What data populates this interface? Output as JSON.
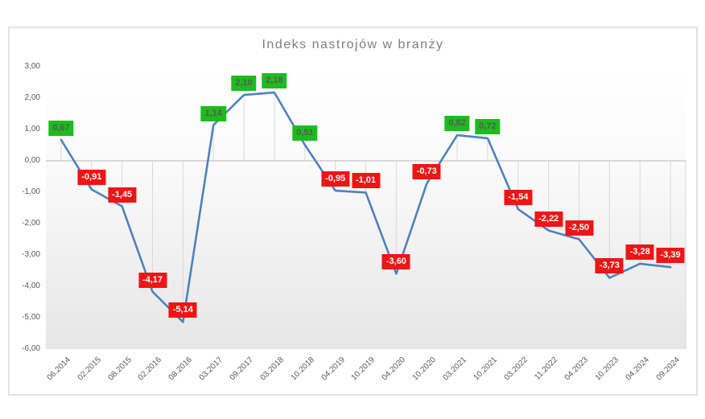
{
  "chart_data": {
    "type": "line",
    "title": "Indeks nastrojów w branży",
    "categories": [
      "06.2014",
      "02.2015",
      "08.2015",
      "02.2016",
      "08.2016",
      "03.2017",
      "09.2017",
      "03.2018",
      "10.2018",
      "04.2019",
      "10.2019",
      "04.2020",
      "10.2020",
      "03.2021",
      "10.2021",
      "03.2022",
      "11.2022",
      "04.2023",
      "10.2023",
      "04.2024",
      "09.2024"
    ],
    "values": [
      0.67,
      -0.91,
      -1.45,
      -4.17,
      -5.14,
      1.14,
      2.1,
      2.18,
      0.51,
      -0.95,
      -1.01,
      -3.6,
      -0.73,
      0.82,
      0.72,
      -1.54,
      -2.22,
      -2.5,
      -3.73,
      -3.28,
      -3.39
    ],
    "value_labels": [
      "0,67",
      "-0,91",
      "-1,45",
      "-4,17",
      "-5,14",
      "1,14",
      "2,10",
      "2,18",
      "0,51",
      "-0,95",
      "-1,01",
      "-3,60",
      "-0,73",
      "0,82",
      "0,72",
      "-1,54",
      "-2,22",
      "-2,50",
      "-3,73",
      "-3,28",
      "-3,39"
    ],
    "y_tick_labels": [
      "3,00",
      "2,00",
      "1,00",
      "0,00",
      "-1,00",
      "-2,00",
      "-3,00",
      "-4,00",
      "-5,00",
      "-6,00"
    ],
    "ylim": [
      -6,
      3
    ],
    "xlabel": "",
    "ylabel": "",
    "legend": "none",
    "grid": "zero-axis-with-drop-lines-to-points",
    "colors": {
      "line": "#4f81bd",
      "positive_label_bg": "#1dbb1d",
      "positive_label_text": "#595959",
      "negative_label_bg": "#ee1515",
      "negative_label_text": "#ffffff",
      "axis_text": "#595959",
      "title_text": "#7f7f7f",
      "drop_line": "#d9d9d9",
      "zero_axis": "#c3c3c3",
      "chart_border": "#e2e2e2"
    }
  }
}
